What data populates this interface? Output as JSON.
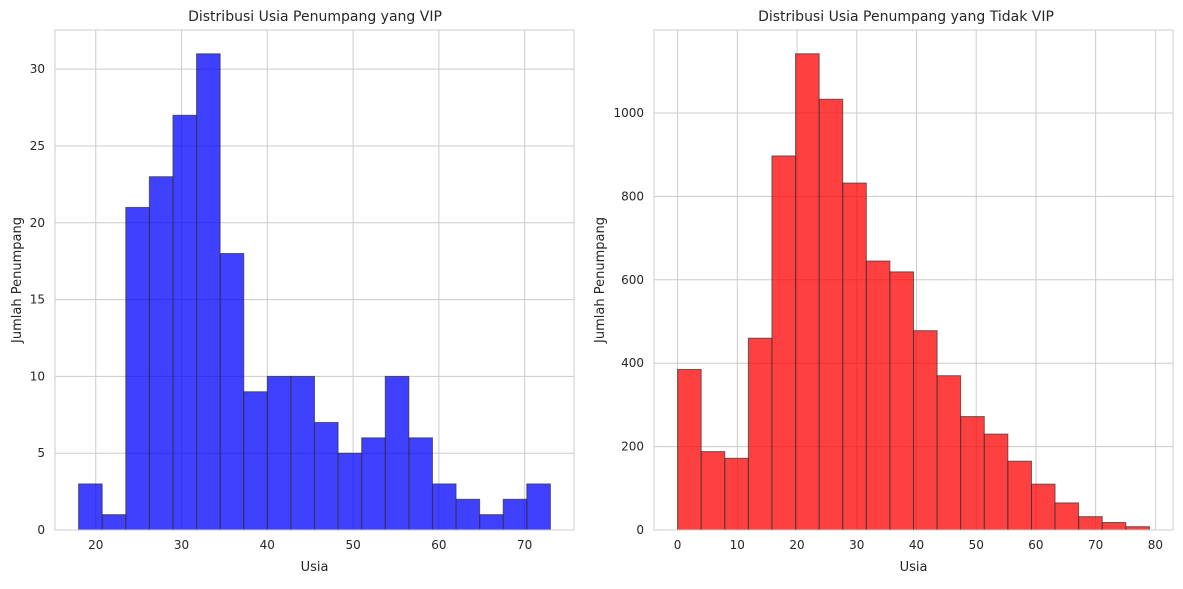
{
  "chart_data": [
    {
      "type": "bar",
      "subtype": "histogram",
      "title": "Distribusi Usia Penumpang yang VIP",
      "xlabel": "Usia",
      "ylabel": "Jumlah Penumpang",
      "color": "#0000ff",
      "bin_edges": [
        18,
        20.75,
        23.5,
        26.25,
        29,
        31.75,
        34.5,
        37.25,
        40,
        42.75,
        45.5,
        48.25,
        51,
        53.75,
        56.5,
        59.25,
        62,
        64.75,
        67.5,
        70.25,
        73
      ],
      "values": [
        3,
        1,
        21,
        23,
        27,
        31,
        18,
        9,
        10,
        10,
        7,
        5,
        6,
        10,
        6,
        3,
        2,
        1,
        2,
        3
      ],
      "xlim": [
        15.25,
        75.75
      ],
      "ylim": [
        0,
        32.55
      ],
      "xticks": [
        20,
        30,
        40,
        50,
        60,
        70
      ],
      "yticks": [
        0,
        5,
        10,
        15,
        20,
        25,
        30
      ],
      "grid": true
    },
    {
      "type": "bar",
      "subtype": "histogram",
      "title": "Distribusi Usia Penumpang yang Tidak VIP",
      "xlabel": "Usia",
      "ylabel": "Jumlah Penumpang",
      "color": "#ff0000",
      "bin_edges": [
        0,
        3.95,
        7.9,
        11.85,
        15.8,
        19.75,
        23.7,
        27.65,
        31.6,
        35.55,
        39.5,
        43.45,
        47.4,
        51.35,
        55.3,
        59.25,
        63.2,
        67.15,
        71.1,
        75.05,
        79
      ],
      "values": [
        385,
        188,
        172,
        460,
        897,
        1142,
        1033,
        832,
        645,
        619,
        478,
        370,
        272,
        230,
        165,
        110,
        65,
        32,
        18,
        8
      ],
      "xlim": [
        -3.95,
        82.95
      ],
      "ylim": [
        0,
        1199
      ],
      "xticks": [
        0,
        10,
        20,
        30,
        40,
        50,
        60,
        70,
        80
      ],
      "yticks": [
        0,
        200,
        400,
        600,
        800,
        1000
      ],
      "grid": true
    }
  ]
}
